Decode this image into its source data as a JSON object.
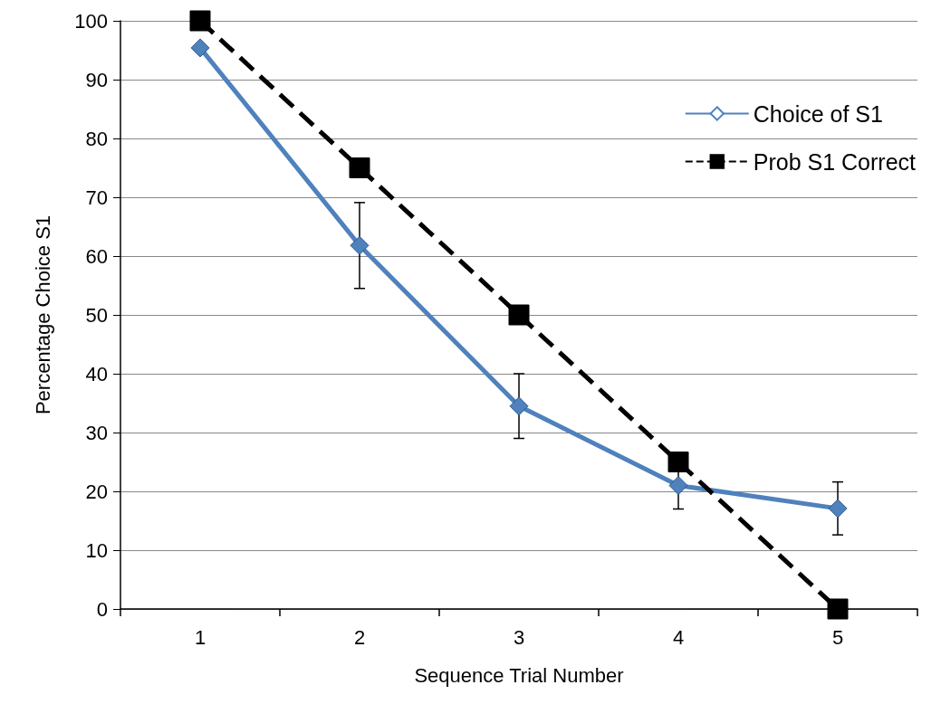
{
  "chart_data": {
    "type": "line",
    "xlabel": "Sequence Trial Number",
    "ylabel": "Percentage Choice S1",
    "categories": [
      "1",
      "2",
      "3",
      "4",
      "5"
    ],
    "series": [
      {
        "name": "Choice of S1",
        "color": "#4f81bd",
        "marker": "diamond",
        "line_style": "solid",
        "values": [
          95.4,
          61.8,
          34.5,
          21,
          17.1
        ],
        "errors": [
          null,
          7.3,
          5.5,
          4,
          4.5
        ]
      },
      {
        "name": "Prob S1 Correct",
        "color": "#000000",
        "marker": "square",
        "line_style": "dashed",
        "values": [
          100,
          75,
          50,
          25,
          0
        ]
      }
    ],
    "ylim": [
      0,
      100
    ],
    "yticks": [
      0,
      10,
      20,
      30,
      40,
      50,
      60,
      70,
      80,
      90,
      100
    ],
    "grid": "y",
    "legend": "top right"
  }
}
